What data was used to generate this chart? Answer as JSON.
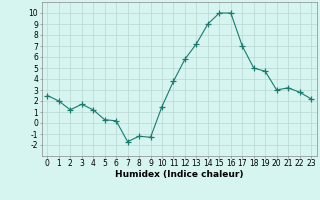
{
  "x": [
    0,
    1,
    2,
    3,
    4,
    5,
    6,
    7,
    8,
    9,
    10,
    11,
    12,
    13,
    14,
    15,
    16,
    17,
    18,
    19,
    20,
    21,
    22,
    23
  ],
  "y": [
    2.5,
    2.0,
    1.2,
    1.7,
    1.2,
    0.3,
    0.2,
    -1.7,
    -1.2,
    -1.3,
    1.5,
    3.8,
    5.8,
    7.2,
    9.0,
    10.0,
    10.0,
    7.0,
    5.0,
    4.7,
    3.0,
    3.2,
    2.8,
    2.2
  ],
  "line_color": "#1a7a6e",
  "marker": "+",
  "marker_size": 4,
  "background_color": "#d6f5f0",
  "grid_color": "#b8d8d2",
  "xlabel": "Humidex (Indice chaleur)",
  "ylabel": "",
  "xlim": [
    -0.5,
    23.5
  ],
  "ylim": [
    -3,
    11
  ],
  "yticks": [
    -2,
    -1,
    0,
    1,
    2,
    3,
    4,
    5,
    6,
    7,
    8,
    9,
    10
  ],
  "xticks": [
    0,
    1,
    2,
    3,
    4,
    5,
    6,
    7,
    8,
    9,
    10,
    11,
    12,
    13,
    14,
    15,
    16,
    17,
    18,
    19,
    20,
    21,
    22,
    23
  ],
  "xlabel_fontsize": 6.5,
  "tick_fontsize": 5.5,
  "line_width": 0.8,
  "marker_edge_width": 0.9
}
